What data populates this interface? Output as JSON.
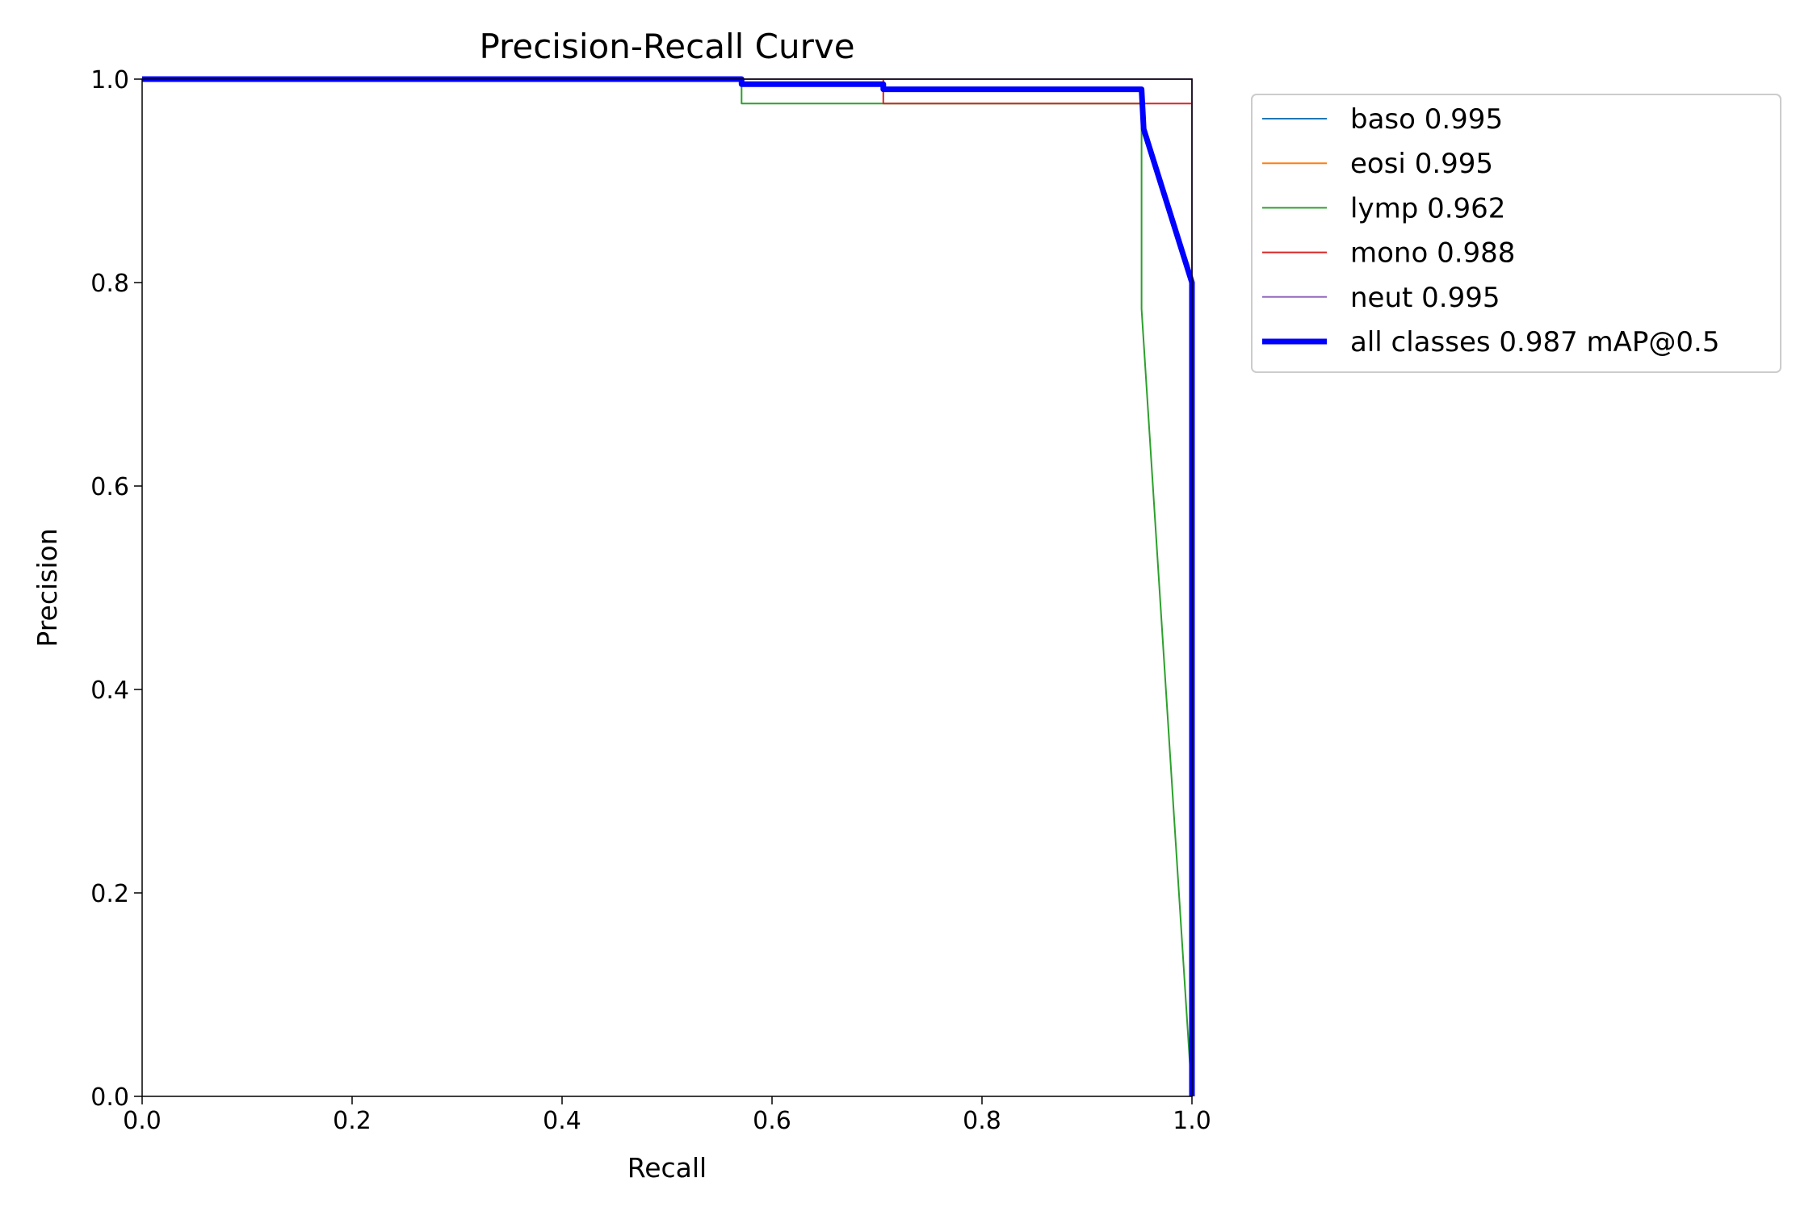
{
  "chart_data": {
    "type": "line",
    "title": "Precision-Recall Curve",
    "x_label": "Recall",
    "y_label": "Precision",
    "xlim": [
      0,
      1
    ],
    "ylim": [
      0,
      1
    ],
    "xticks": [
      {
        "value": 0,
        "label": "0.0"
      },
      0.2,
      0.4,
      0.6,
      0.8,
      {
        "value": 1,
        "label": "1.0"
      }
    ],
    "yticks": [
      {
        "value": 0,
        "label": "0.0"
      },
      0.2,
      0.4,
      0.6,
      0.8,
      {
        "value": 1,
        "label": "1.0"
      }
    ],
    "series": [
      {
        "name": "baso 0.995",
        "color": "#1f77b4",
        "linewidth": 2,
        "x": [
          0,
          1,
          1
        ],
        "values": [
          1,
          1,
          0
        ]
      },
      {
        "name": "eosi 0.995",
        "color": "#ff7f0e",
        "linewidth": 2,
        "x": [
          0,
          1,
          1
        ],
        "values": [
          1,
          1,
          0
        ]
      },
      {
        "name": "lymp 0.962",
        "color": "#2ca02c",
        "linewidth": 2,
        "x": [
          0,
          0.571,
          0.571,
          0.952,
          0.952,
          1
        ],
        "values": [
          1,
          1,
          0.976,
          0.976,
          0.774,
          0
        ]
      },
      {
        "name": "mono 0.988",
        "color": "#d62728",
        "linewidth": 2,
        "x": [
          0,
          0.706,
          0.706,
          1,
          1
        ],
        "values": [
          1,
          1,
          0.976,
          0.976,
          0
        ]
      },
      {
        "name": "neut 0.995",
        "color": "#9467bd",
        "linewidth": 2,
        "x": [
          0,
          1,
          1
        ],
        "values": [
          1,
          1,
          0
        ]
      },
      {
        "name": "all classes 0.987 mAP@0.5",
        "color": "#0000ff",
        "linewidth": 7,
        "x": [
          0,
          0.571,
          0.571,
          0.706,
          0.706,
          0.952,
          0.954,
          1,
          1
        ],
        "values": [
          1,
          1,
          0.995,
          0.995,
          0.99,
          0.99,
          0.951,
          0.8,
          0
        ]
      }
    ]
  }
}
